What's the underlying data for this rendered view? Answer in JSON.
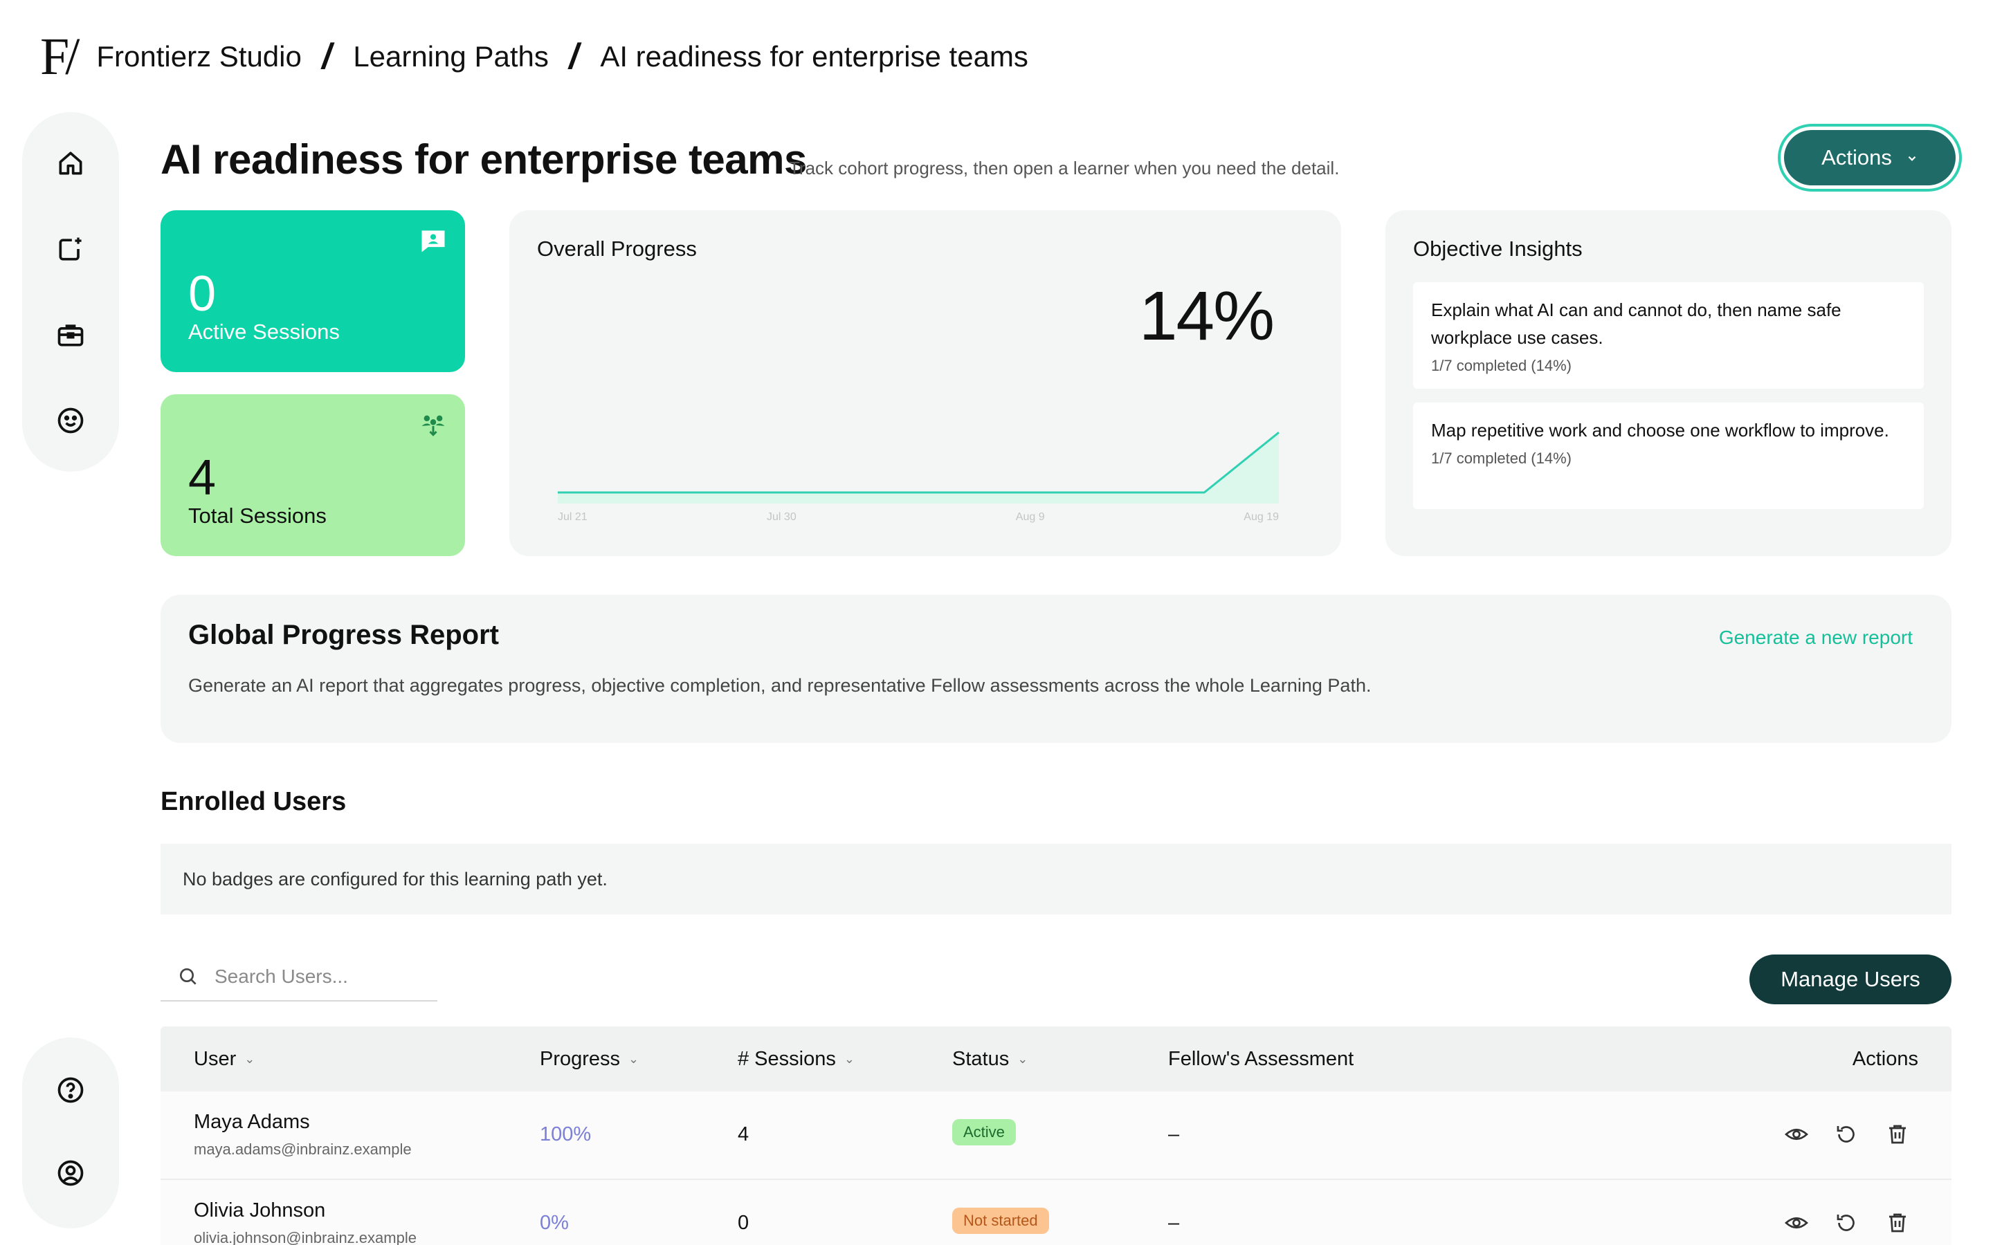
{
  "breadcrumb": {
    "logo": "F/",
    "items": [
      "Frontierz Studio",
      "Learning Paths",
      "AI readiness for enterprise teams"
    ]
  },
  "sidebar": {
    "top": [
      "home-icon",
      "new-item-icon",
      "briefcase-icon",
      "smiley-icon"
    ],
    "bottom": [
      "help-icon",
      "account-icon"
    ]
  },
  "page": {
    "title": "AI readiness for enterprise teams",
    "subtitle": "Track cohort progress, then open a learner when you need the detail.",
    "actions_label": "Actions"
  },
  "stats": {
    "active": {
      "value": "0",
      "label": "Active Sessions"
    },
    "total": {
      "value": "4",
      "label": "Total Sessions"
    }
  },
  "progress": {
    "title": "Overall Progress",
    "value": "14%"
  },
  "chart_data": {
    "type": "area",
    "title": "Overall Progress",
    "x": [
      "Jul 21",
      "Jul 30",
      "Aug 9",
      "Aug 16",
      "Aug 19"
    ],
    "tick_labels": [
      "Jul 21",
      "Jul 30",
      "Aug 9",
      "Aug 19"
    ],
    "values": [
      0,
      0,
      0,
      0,
      14
    ],
    "ylim": [
      0,
      20
    ],
    "grid": false,
    "color": "#2fd1b2"
  },
  "insights": {
    "title": "Objective Insights",
    "items": [
      {
        "text": "Explain what AI can and cannot do, then name safe workplace use cases.",
        "meta": "1/7 completed (14%)"
      },
      {
        "text": "Map repetitive work and choose one workflow to improve.",
        "meta": "1/7 completed (14%)"
      }
    ]
  },
  "report": {
    "title": "Global Progress Report",
    "description": "Generate an AI report that aggregates progress, objective completion, and representative Fellow assessments across the whole Learning Path.",
    "link": "Generate a new report"
  },
  "enrolled": {
    "title": "Enrolled Users",
    "badges_note": "No badges are configured for this learning path yet.",
    "search_placeholder": "Search Users...",
    "manage_label": "Manage Users"
  },
  "table": {
    "headers": {
      "user": "User",
      "progress": "Progress",
      "sessions": "# Sessions",
      "status": "Status",
      "assessment": "Fellow's Assessment",
      "actions": "Actions"
    },
    "rows": [
      {
        "name": "Maya Adams",
        "email": "maya.adams@inbrainz.example",
        "progress": "100%",
        "sessions": "4",
        "status": "Active",
        "assessment": "–"
      },
      {
        "name": "Olivia Johnson",
        "email": "olivia.johnson@inbrainz.example",
        "progress": "0%",
        "sessions": "0",
        "status": "Not started",
        "assessment": "–"
      }
    ]
  },
  "colors": {
    "accent": "#0dd3a8",
    "dark_teal": "#1f6b67",
    "manage": "#123a3a",
    "link": "#14c09a"
  }
}
